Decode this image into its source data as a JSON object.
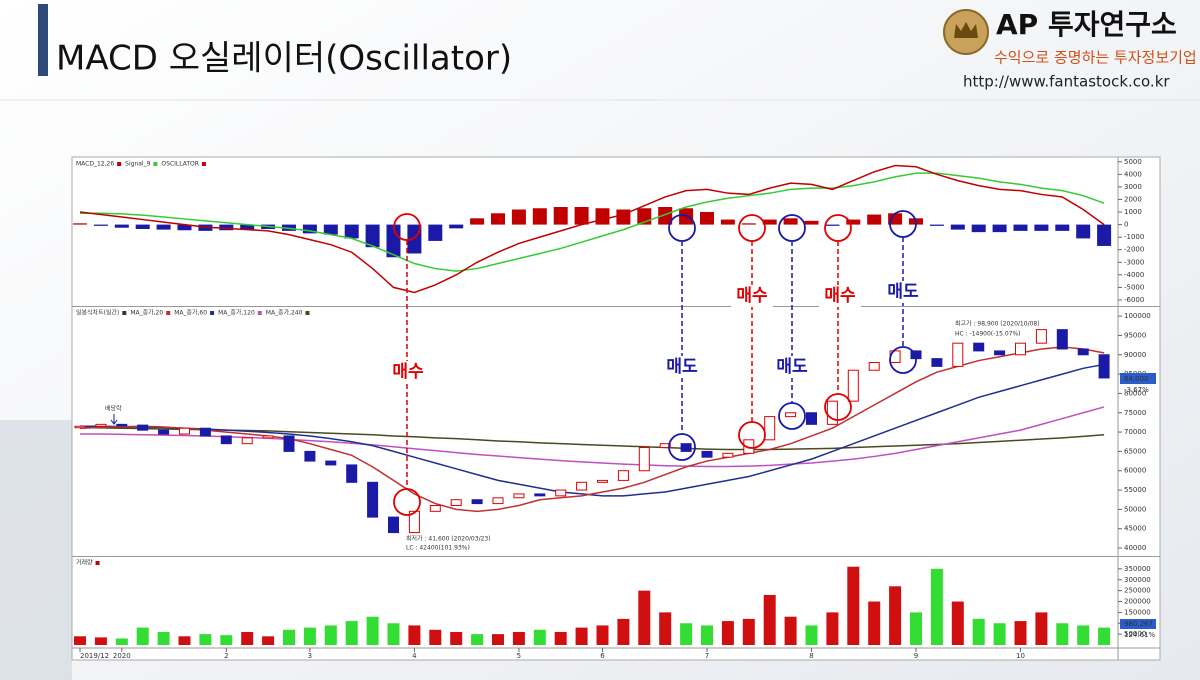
{
  "header": {
    "title": "MACD 오실레이터(Oscillator)",
    "brand": "AP 투자연구소",
    "slogan": "수익으로 증명하는 투자정보기업",
    "url": "http://www.fantastock.co.kr"
  },
  "chart_data": [
    {
      "type": "macd",
      "series": [
        {
          "name": "MACD_12,26",
          "color": "#c00000",
          "values": [
            1000,
            800,
            600,
            400,
            200,
            0,
            -200,
            -300,
            -400,
            -500,
            -800,
            -1200,
            -1600,
            -2200,
            -3500,
            -5000,
            -5400,
            -4800,
            -4000,
            -3000,
            -2200,
            -1500,
            -1000,
            -500,
            0,
            400,
            800,
            1500,
            2200,
            2700,
            2800,
            2500,
            2400,
            2900,
            3300,
            3200,
            2800,
            3500,
            4200,
            4700,
            4600,
            4000,
            3500,
            3100,
            2800,
            2700,
            2400,
            2200,
            1200,
            0
          ]
        },
        {
          "name": "Signal_9",
          "color": "#33cc33",
          "values": [
            900,
            900,
            850,
            750,
            600,
            450,
            300,
            150,
            0,
            -150,
            -300,
            -500,
            -800,
            -1100,
            -1700,
            -2400,
            -3100,
            -3500,
            -3700,
            -3500,
            -3100,
            -2700,
            -2300,
            -1900,
            -1400,
            -900,
            -400,
            200,
            800,
            1400,
            1800,
            2100,
            2300,
            2500,
            2800,
            2900,
            2900,
            3100,
            3400,
            3800,
            4100,
            4100,
            3900,
            3700,
            3400,
            3200,
            2900,
            2700,
            2300,
            1700
          ]
        },
        {
          "name": "OSCILLATOR",
          "color": "#c00000",
          "negative_color": "#1a1aa6",
          "values": [
            100,
            -100,
            -250,
            -350,
            -400,
            -450,
            -500,
            -450,
            -400,
            -350,
            -500,
            -700,
            -800,
            -1100,
            -1800,
            -2600,
            -2300,
            -1300,
            -300,
            500,
            900,
            1200,
            1300,
            1400,
            1400,
            1300,
            1200,
            1300,
            1400,
            1300,
            1000,
            400,
            100,
            400,
            500,
            300,
            -100,
            400,
            800,
            900,
            500,
            -100,
            -400,
            -600,
            -600,
            -500,
            -500,
            -500,
            -1100,
            -1700
          ]
        }
      ],
      "ylim": [
        -6400,
        5300
      ],
      "yticks": [
        5000,
        4000,
        3000,
        2000,
        1000,
        0,
        -1000,
        -2000,
        -3000,
        -4000,
        -5000,
        -6000
      ]
    },
    {
      "type": "candlestick",
      "title": "일봉식차트(일간)",
      "close": [
        71500,
        72000,
        71800,
        70500,
        69500,
        71000,
        69000,
        67000,
        68500,
        69000,
        65000,
        62500,
        61500,
        57000,
        48000,
        44000,
        49500,
        51000,
        52500,
        51500,
        53000,
        54000,
        53500,
        55000,
        57000,
        57500,
        60000,
        66000,
        67000,
        65000,
        63500,
        64500,
        68000,
        74000,
        75000,
        72000,
        78000,
        86000,
        88000,
        91000,
        89000,
        87000,
        93000,
        91000,
        90000,
        93000,
        96500,
        91500,
        90000,
        84000
      ],
      "up_color": "#e00000",
      "down_color": "#1a1aa6",
      "series": [
        {
          "name": "MA_종가,20",
          "color": "#c03030",
          "values": [
            71000,
            71200,
            71400,
            71500,
            71300,
            71000,
            70500,
            70000,
            69500,
            69000,
            68300,
            67000,
            65500,
            64000,
            61000,
            57500,
            54000,
            51500,
            50000,
            49500,
            50000,
            51000,
            52500,
            53000,
            53500,
            54500,
            55500,
            57000,
            59000,
            61000,
            62500,
            63500,
            64500,
            65500,
            67000,
            69000,
            71000,
            74000,
            77000,
            80000,
            83000,
            85500,
            87000,
            88500,
            89500,
            90500,
            91500,
            92000,
            91500,
            90500
          ]
        },
        {
          "name": "MA_종가,60",
          "color": "#1f2f8f",
          "values": [
            71500,
            71500,
            71400,
            71300,
            71200,
            71000,
            70800,
            70500,
            70200,
            69900,
            69500,
            69000,
            68300,
            67500,
            66500,
            65000,
            63500,
            62000,
            60500,
            59000,
            57500,
            56500,
            55500,
            54500,
            54000,
            53500,
            53500,
            54000,
            54500,
            55500,
            56500,
            57500,
            58500,
            60000,
            61500,
            63000,
            65000,
            67000,
            69000,
            71000,
            73000,
            75000,
            77000,
            79000,
            80500,
            82000,
            83500,
            85000,
            86500,
            87500
          ]
        },
        {
          "name": "MA_종가,120",
          "color": "#c050c0",
          "values": [
            69500,
            69500,
            69400,
            69300,
            69200,
            69100,
            69000,
            68800,
            68600,
            68400,
            68100,
            67800,
            67500,
            67100,
            66700,
            66200,
            65700,
            65200,
            64700,
            64200,
            63800,
            63400,
            63000,
            62600,
            62300,
            62000,
            61700,
            61500,
            61300,
            61200,
            61100,
            61100,
            61200,
            61400,
            61700,
            62000,
            62500,
            63000,
            63700,
            64500,
            65500,
            66500,
            67500,
            68500,
            69500,
            70500,
            72000,
            73500,
            75000,
            76500
          ]
        },
        {
          "name": "MA_종가,240",
          "color": "#4a4a20",
          "values": [
            71200,
            71100,
            71000,
            70900,
            70800,
            70700,
            70600,
            70500,
            70400,
            70300,
            70100,
            69900,
            69700,
            69500,
            69300,
            69000,
            68800,
            68500,
            68300,
            68000,
            67700,
            67500,
            67200,
            67000,
            66800,
            66600,
            66400,
            66200,
            66000,
            65800,
            65600,
            65500,
            65500,
            65500,
            65600,
            65700,
            65800,
            66000,
            66200,
            66400,
            66600,
            66800,
            67000,
            67300,
            67600,
            67900,
            68200,
            68500,
            68900,
            69300
          ]
        }
      ],
      "ylim": [
        38200,
        102100
      ],
      "yticks": [
        100000,
        95000,
        90000,
        85000,
        80000,
        75000,
        70000,
        65000,
        60000,
        55000,
        50000,
        45000,
        40000
      ],
      "signals": [
        {
          "label": "매수",
          "color": "#e00000"
        },
        {
          "label": "매도",
          "color": "#1a1aa6"
        },
        {
          "label": "매수",
          "color": "#e00000"
        },
        {
          "label": "매도",
          "color": "#1a1aa6"
        },
        {
          "label": "매수",
          "color": "#e00000"
        },
        {
          "label": "매도",
          "color": "#1a1aa6"
        }
      ],
      "notes": [
        "배당락",
        "최저가 : 41,600 (2020/03/23)",
        "LC : 42400(101.93%)",
        "최고가 : 98,900 (2020/10/08)",
        "HC : -14900(-15.07%)",
        "84,000",
        "-3.67%"
      ]
    },
    {
      "type": "volume",
      "title": "거래량",
      "values": [
        40000,
        35000,
        30000,
        80000,
        60000,
        40000,
        50000,
        45000,
        60000,
        40000,
        70000,
        80000,
        90000,
        110000,
        130000,
        100000,
        90000,
        70000,
        60000,
        50000,
        50000,
        60000,
        70000,
        60000,
        80000,
        90000,
        120000,
        250000,
        150000,
        100000,
        90000,
        110000,
        120000,
        230000,
        130000,
        90000,
        150000,
        360000,
        200000,
        270000,
        150000,
        350000,
        200000,
        120000,
        100000,
        110000,
        150000,
        100000,
        90000,
        80000
      ],
      "up_color": "#d01010",
      "down_color": "#33dd33",
      "ylim": [
        0,
        400000
      ],
      "yticks": [
        350000,
        300000,
        250000,
        200000,
        150000,
        100000,
        50000
      ],
      "categories": [
        "2019/12",
        null,
        "2020",
        null,
        null,
        null,
        null,
        "2",
        null,
        null,
        null,
        "3",
        null,
        null,
        null,
        null,
        "4",
        null,
        null,
        null,
        null,
        "5",
        null,
        null,
        null,
        "6",
        null,
        null,
        null,
        null,
        "7",
        null,
        null,
        null,
        null,
        "8",
        null,
        null,
        null,
        null,
        "9",
        null,
        null,
        null,
        null,
        "10",
        null,
        null,
        null,
        null
      ],
      "notes": [
        "980,267",
        "124.61%"
      ]
    }
  ]
}
